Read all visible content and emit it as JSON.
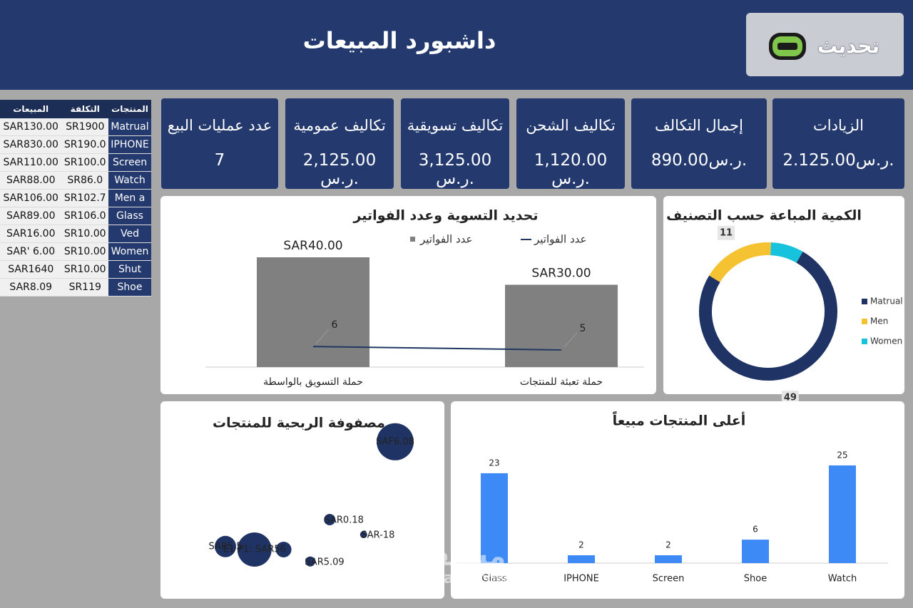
{
  "header": {
    "title": "داشبورد المبيعات",
    "refresh_button": "تحديث",
    "watermark": [
      "مستقل",
      "mostaql.com"
    ]
  },
  "kpis": [
    {
      "label": "الزيادات",
      "value": "2.125.00ر.س."
    },
    {
      "label": "إجمال التكالف",
      "value": "890.00ر.س."
    },
    {
      "label": "تكاليف الشحن",
      "value": "1,120.00 ر.س."
    },
    {
      "label": "تكاليف تسويقية",
      "value": "3,125.00 ر.س."
    },
    {
      "label": "تكاليف عمومية",
      "value": "2,125.00 ر.س."
    },
    {
      "label": "عدد عمليات البيع",
      "value": "7"
    }
  ],
  "table": {
    "headers": [
      "المبيعات",
      "التكلفة",
      "المنتجات"
    ],
    "rows": [
      [
        "SAR130.00",
        "SR1900",
        "Matrual"
      ],
      [
        "SAR830.00",
        "SR190.0",
        "IPHONE"
      ],
      [
        "SAR110.00",
        "SR100.0",
        "Screen"
      ],
      [
        "SAR88.00",
        "SR86.0",
        "Watch"
      ],
      [
        "SAR106.00",
        "SR102.7",
        "Men a"
      ],
      [
        "SAR89.00",
        "SR106.0",
        "Glass"
      ],
      [
        "SAR16.00",
        "SR10.00",
        "Ved"
      ],
      [
        "SAR' 6.00",
        "SR10.00",
        "Women"
      ],
      [
        "SAR1640",
        "SR10.00",
        "Shut"
      ],
      [
        "SAR8.09",
        "SR119",
        "Shoe"
      ]
    ]
  },
  "chart_data": [
    {
      "type": "combo",
      "title": "تحديد التسوية وعدد الفواتير",
      "categories": [
        "حملة التسويق بالواسطة",
        "حملة تعبئة للمنتجات"
      ],
      "series": [
        {
          "name": "عدد الفواتير",
          "kind": "bar",
          "color": "#808080",
          "values": [
            40,
            30
          ],
          "value_labels": [
            "SAR40.00",
            "SAR30.00"
          ]
        },
        {
          "name": "عدد الفواتير",
          "kind": "line",
          "axis": "y2",
          "color": "#1f3864",
          "values": [
            6,
            5
          ]
        }
      ],
      "ylim": [
        0,
        50
      ],
      "y2lim": [
        0,
        40
      ]
    },
    {
      "type": "donut",
      "title": "الكمية المباعة حسب التصنيف",
      "categories": [
        "Matrual",
        "Men",
        "Women"
      ],
      "values": [
        49,
        11,
        5
      ],
      "value_labels": [
        "49",
        "11",
        null
      ],
      "colors": [
        "#1f3464",
        "#f5c231",
        "#17c3dc"
      ]
    },
    {
      "type": "bubble",
      "title": "مصفوفة الربحية للمنتجات",
      "x": [
        85,
        58,
        72,
        15,
        27,
        39,
        50
      ],
      "values": [
        92,
        40,
        30,
        22,
        20,
        20,
        12
      ],
      "sizes": [
        26,
        8,
        5,
        15,
        24,
        11,
        7
      ],
      "labels": [
        "SAF6.08",
        "SAR0.18",
        "SAR-18",
        "SAR5.5",
        "E1 P1: SAR56",
        null,
        "SAR5.09"
      ],
      "color": "#1f3464",
      "xlim": [
        0,
        100
      ],
      "ylim": [
        0,
        100
      ]
    },
    {
      "type": "bar",
      "title": "أعلى المنتجات مبيعاً",
      "categories": [
        "Glass",
        "IPHONE",
        "Screen",
        "Shoe",
        "Watch"
      ],
      "values": [
        23,
        2,
        2,
        6,
        25
      ],
      "color": "#3d8af7",
      "ylim": [
        0,
        27
      ]
    }
  ]
}
